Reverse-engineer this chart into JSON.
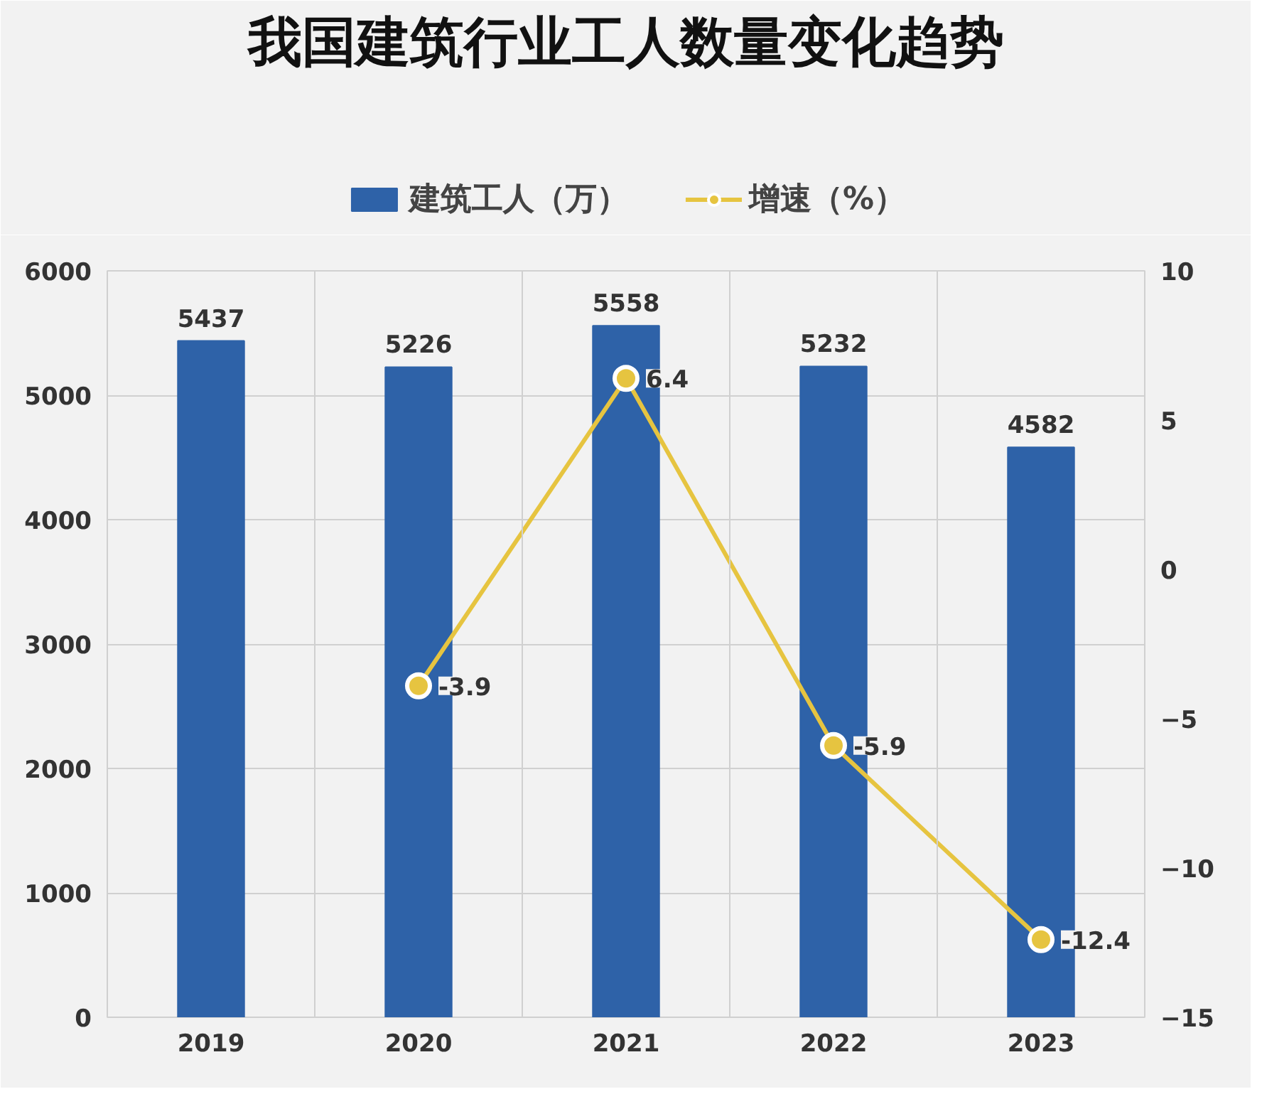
{
  "chart_data": {
    "type": "bar",
    "title": "我国建筑行业工人数量变化趋势",
    "categories": [
      "2019",
      "2020",
      "2021",
      "2022",
      "2023"
    ],
    "series": [
      {
        "name": "建筑工人（万）",
        "color": "#2e62a8",
        "values": [
          5437,
          5226,
          5558,
          5232,
          4582
        ]
      },
      {
        "name": "增速（%）",
        "type": "line",
        "axis": "y2",
        "color": "#e6c440",
        "marker": "circle",
        "values": [
          null,
          -3.9,
          6.4,
          -5.9,
          -12.4
        ]
      }
    ],
    "ylim": [
      0,
      6000
    ],
    "yticks": [
      0,
      1000,
      2000,
      3000,
      4000,
      5000,
      6000
    ],
    "y2lim": [
      -15,
      10
    ],
    "y2ticks": [
      -15,
      -10,
      -5,
      0,
      5,
      10
    ],
    "grid": true,
    "legend": "top",
    "data_labels": true
  }
}
